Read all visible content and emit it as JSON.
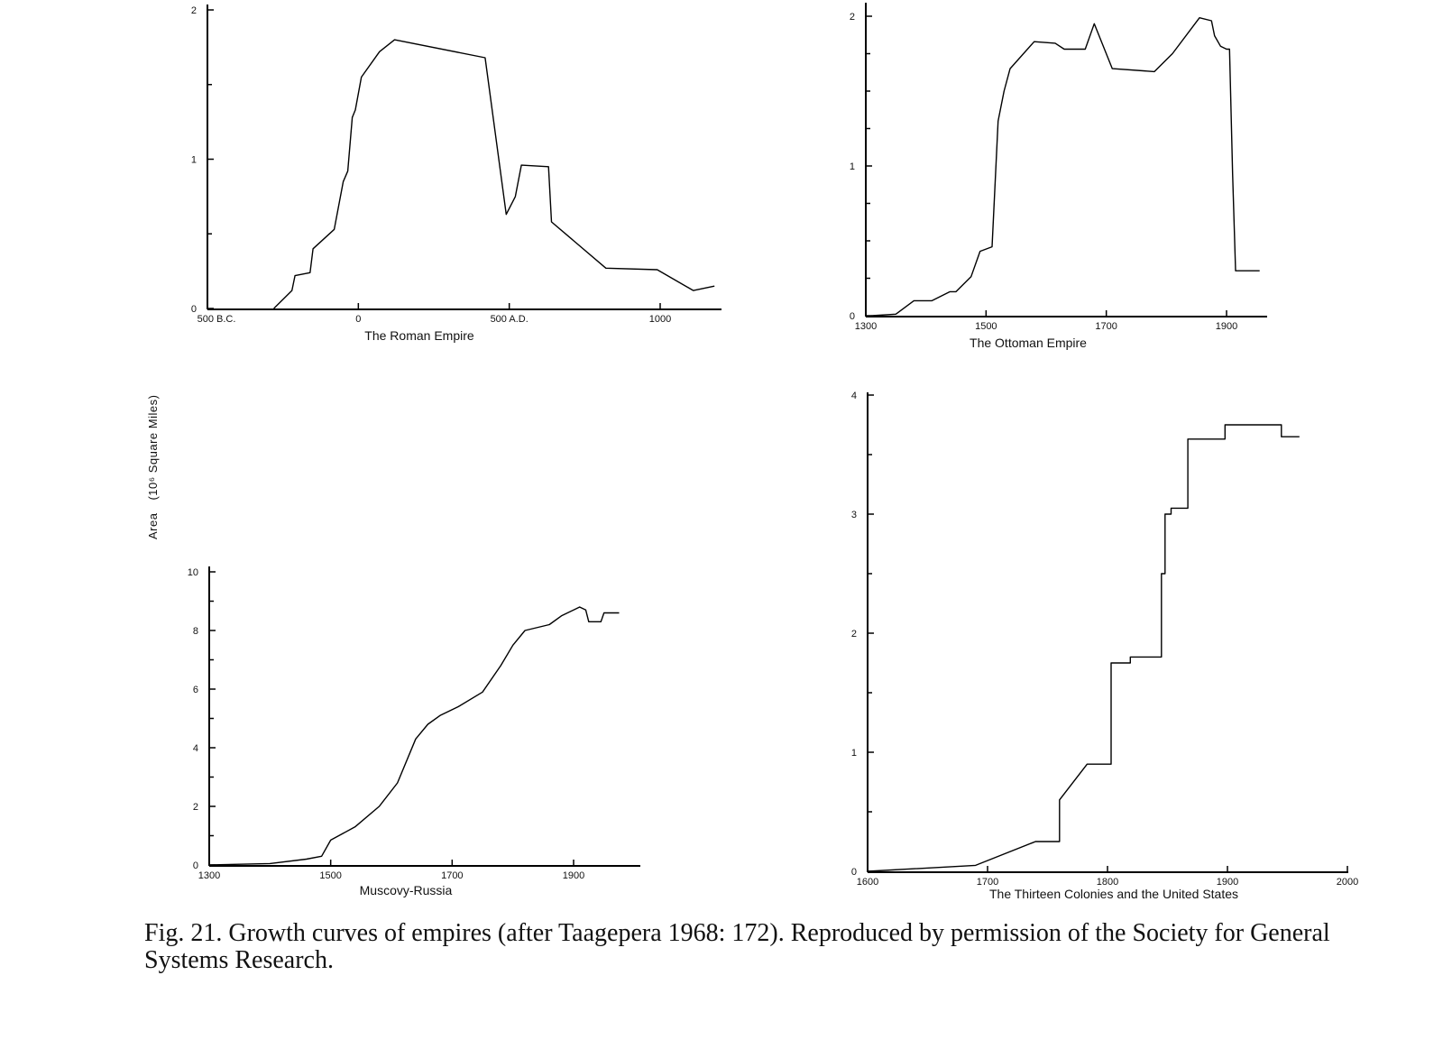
{
  "figure": {
    "ylabel": "Area",
    "ylabel_unit": "(10⁶ Square Miles)",
    "caption": "Fig. 21. Growth curves of empires (after Taagepera 1968: 172). Reproduced by permission of the Society for General Systems Research."
  },
  "chart_data": [
    {
      "type": "line",
      "title": "The Roman Empire",
      "xlim": [
        -500,
        1200
      ],
      "ylim": [
        0,
        2
      ],
      "x_ticks": [
        {
          "value": -500,
          "label": "500 B.C."
        },
        {
          "value": 0,
          "label": "0"
        },
        {
          "value": 500,
          "label": "500 A.D."
        },
        {
          "value": 1000,
          "label": "1000"
        }
      ],
      "y_ticks": [
        {
          "value": 0,
          "label": "0"
        },
        {
          "value": 1,
          "label": "1"
        },
        {
          "value": 2,
          "label": "2"
        }
      ],
      "series": [
        {
          "x": [
            -280,
            -220,
            -210,
            -160,
            -150,
            -80,
            -50,
            -35,
            -20,
            -10,
            10,
            70,
            120,
            420,
            490,
            520,
            540,
            630,
            640,
            820,
            990,
            1110,
            1180
          ],
          "y": [
            0.0,
            0.12,
            0.22,
            0.24,
            0.4,
            0.53,
            0.85,
            0.92,
            1.28,
            1.33,
            1.55,
            1.72,
            1.8,
            1.68,
            0.63,
            0.75,
            0.96,
            0.95,
            0.58,
            0.27,
            0.26,
            0.12,
            0.15
          ]
        }
      ]
    },
    {
      "type": "line",
      "title": "The Ottoman Empire",
      "xlim": [
        1300,
        1940
      ],
      "ylim": [
        0,
        2
      ],
      "x_ticks": [
        {
          "value": 1300,
          "label": "1300"
        },
        {
          "value": 1500,
          "label": "1500"
        },
        {
          "value": 1700,
          "label": "1700"
        },
        {
          "value": 1900,
          "label": "1900"
        }
      ],
      "y_ticks": [
        {
          "value": 0,
          "label": "0"
        },
        {
          "value": 1,
          "label": "1"
        },
        {
          "value": 2,
          "label": "2"
        }
      ],
      "series": [
        {
          "x": [
            1310,
            1350,
            1380,
            1410,
            1440,
            1450,
            1475,
            1490,
            1510,
            1520,
            1530,
            1540,
            1580,
            1615,
            1630,
            1665,
            1680,
            1710,
            1780,
            1810,
            1855,
            1875,
            1880,
            1890,
            1900,
            1905,
            1910,
            1915,
            1920,
            1955
          ],
          "y": [
            0.0,
            0.01,
            0.1,
            0.1,
            0.16,
            0.16,
            0.26,
            0.43,
            0.46,
            1.3,
            1.5,
            1.65,
            1.83,
            1.82,
            1.78,
            1.78,
            1.95,
            1.65,
            1.63,
            1.75,
            1.99,
            1.97,
            1.87,
            1.8,
            1.78,
            1.78,
            0.95,
            0.3,
            0.3,
            0.3
          ]
        }
      ]
    },
    {
      "type": "line",
      "title": "Muscovy-Russia",
      "xlim": [
        1300,
        2000
      ],
      "ylim": [
        0,
        10
      ],
      "x_ticks": [
        {
          "value": 1300,
          "label": "1300"
        },
        {
          "value": 1500,
          "label": "1500"
        },
        {
          "value": 1700,
          "label": "1700"
        },
        {
          "value": 1900,
          "label": "1900"
        }
      ],
      "y_ticks": [
        {
          "value": 0,
          "label": "0"
        },
        {
          "value": 2,
          "label": "2"
        },
        {
          "value": 4,
          "label": "4"
        },
        {
          "value": 6,
          "label": "6"
        },
        {
          "value": 8,
          "label": "8"
        },
        {
          "value": 10,
          "label": "10"
        }
      ],
      "series": [
        {
          "x": [
            1300,
            1400,
            1460,
            1485,
            1500,
            1540,
            1580,
            1610,
            1640,
            1660,
            1680,
            1710,
            1750,
            1780,
            1800,
            1820,
            1860,
            1880,
            1910,
            1920,
            1925,
            1945,
            1950,
            1975
          ],
          "y": [
            0.0,
            0.05,
            0.2,
            0.3,
            0.85,
            1.3,
            2.0,
            2.8,
            4.3,
            4.8,
            5.1,
            5.4,
            5.9,
            6.8,
            7.5,
            8.0,
            8.2,
            8.5,
            8.8,
            8.7,
            8.3,
            8.3,
            8.6,
            8.6
          ]
        }
      ]
    },
    {
      "type": "line",
      "title": "The Thirteen Colonies and the United States",
      "xlim": [
        1600,
        2000
      ],
      "ylim": [
        0,
        4
      ],
      "x_ticks": [
        {
          "value": 1600,
          "label": "1600"
        },
        {
          "value": 1700,
          "label": "1700"
        },
        {
          "value": 1800,
          "label": "1800"
        },
        {
          "value": 1900,
          "label": "1900"
        },
        {
          "value": 2000,
          "label": "2000"
        }
      ],
      "y_ticks": [
        {
          "value": 0,
          "label": "0"
        },
        {
          "value": 1,
          "label": "1"
        },
        {
          "value": 2,
          "label": "2"
        },
        {
          "value": 3,
          "label": "3"
        },
        {
          "value": 4,
          "label": "4"
        }
      ],
      "series": [
        {
          "x": [
            1600,
            1690,
            1740,
            1760,
            1760,
            1783,
            1803,
            1803,
            1819,
            1819,
            1845,
            1845,
            1848,
            1848,
            1853,
            1853,
            1867,
            1867,
            1898,
            1898,
            1945,
            1945,
            1960
          ],
          "y": [
            0.0,
            0.05,
            0.25,
            0.25,
            0.6,
            0.9,
            0.9,
            1.75,
            1.75,
            1.8,
            1.8,
            2.5,
            2.5,
            3.0,
            3.0,
            3.05,
            3.05,
            3.63,
            3.63,
            3.75,
            3.75,
            3.65,
            3.65
          ]
        }
      ]
    }
  ]
}
